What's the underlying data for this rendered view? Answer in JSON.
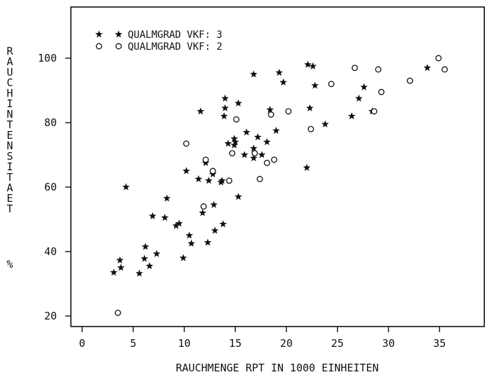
{
  "chart_data": {
    "type": "scatter",
    "title": "",
    "xlabel": "RAUCHMENGE RPT IN 1000 EINHEITEN",
    "ylabel": "RAUCHINTENSITAET",
    "ylabel_unit": "%",
    "xlim": [
      -1,
      38
    ],
    "ylim": [
      16,
      115
    ],
    "x_ticks": [
      0,
      5,
      10,
      15,
      20,
      25,
      30,
      35
    ],
    "y_ticks": [
      20,
      40,
      60,
      80,
      100
    ],
    "grid": false,
    "legend_position": "top-left",
    "series": [
      {
        "name": "QUALMGRAD VKF: 3",
        "marker": "star",
        "points": [
          [
            3.1,
            33.5
          ],
          [
            3.7,
            37.3
          ],
          [
            3.8,
            35
          ],
          [
            4.3,
            60
          ],
          [
            5.6,
            33.2
          ],
          [
            6.1,
            37.8
          ],
          [
            6.2,
            41.5
          ],
          [
            6.6,
            35.5
          ],
          [
            6.9,
            51
          ],
          [
            7.3,
            39.3
          ],
          [
            8.1,
            50.5
          ],
          [
            8.3,
            56.5
          ],
          [
            9.2,
            48
          ],
          [
            9.5,
            48.7
          ],
          [
            9.9,
            38
          ],
          [
            10.2,
            65
          ],
          [
            10.5,
            45
          ],
          [
            10.7,
            42.5
          ],
          [
            11.4,
            62.5
          ],
          [
            11.6,
            83.5
          ],
          [
            11.8,
            52
          ],
          [
            12.1,
            67.5
          ],
          [
            12.3,
            42.8
          ],
          [
            12.4,
            62
          ],
          [
            12.8,
            64
          ],
          [
            12.9,
            54.5
          ],
          [
            13.0,
            46.5
          ],
          [
            13.6,
            61.5
          ],
          [
            13.7,
            62
          ],
          [
            13.8,
            48.5
          ],
          [
            13.9,
            82
          ],
          [
            14.0,
            84.5
          ],
          [
            14.0,
            87.5
          ],
          [
            14.3,
            73.5
          ],
          [
            14.9,
            75
          ],
          [
            14.9,
            73
          ],
          [
            15.0,
            74
          ],
          [
            15.3,
            86
          ],
          [
            15.3,
            57
          ],
          [
            15.9,
            70
          ],
          [
            16.1,
            77
          ],
          [
            16.8,
            72
          ],
          [
            16.8,
            69
          ],
          [
            17.2,
            75.5
          ],
          [
            17.6,
            70
          ],
          [
            18.1,
            74
          ],
          [
            18.4,
            84
          ],
          [
            19.0,
            77.5
          ],
          [
            19.3,
            95.5
          ],
          [
            19.7,
            92.5
          ],
          [
            22.0,
            66
          ],
          [
            22.1,
            98
          ],
          [
            22.3,
            84.5
          ],
          [
            22.6,
            97.5
          ],
          [
            22.8,
            91.5
          ],
          [
            23.8,
            79.5
          ],
          [
            26.4,
            82
          ],
          [
            27.1,
            87.5
          ],
          [
            27.6,
            91
          ],
          [
            16.8,
            95
          ],
          [
            28.4,
            83.5
          ],
          [
            33.8,
            97
          ]
        ]
      },
      {
        "name": "QUALMGRAD VKF: 2",
        "marker": "circle",
        "points": [
          [
            3.5,
            21
          ],
          [
            10.2,
            73.5
          ],
          [
            12.1,
            68.5
          ],
          [
            11.9,
            54
          ],
          [
            12.8,
            65
          ],
          [
            14.4,
            62
          ],
          [
            14.7,
            70.5
          ],
          [
            15.1,
            81
          ],
          [
            16.9,
            70.5
          ],
          [
            17.4,
            62.5
          ],
          [
            18.1,
            67.5
          ],
          [
            18.5,
            82.5
          ],
          [
            18.8,
            68.5
          ],
          [
            20.2,
            83.5
          ],
          [
            22.4,
            78
          ],
          [
            24.4,
            92
          ],
          [
            26.7,
            97
          ],
          [
            28.6,
            83.5
          ],
          [
            29.0,
            96.5
          ],
          [
            29.3,
            89.5
          ],
          [
            32.1,
            93
          ],
          [
            34.9,
            100
          ],
          [
            35.5,
            96.5
          ]
        ]
      }
    ]
  }
}
